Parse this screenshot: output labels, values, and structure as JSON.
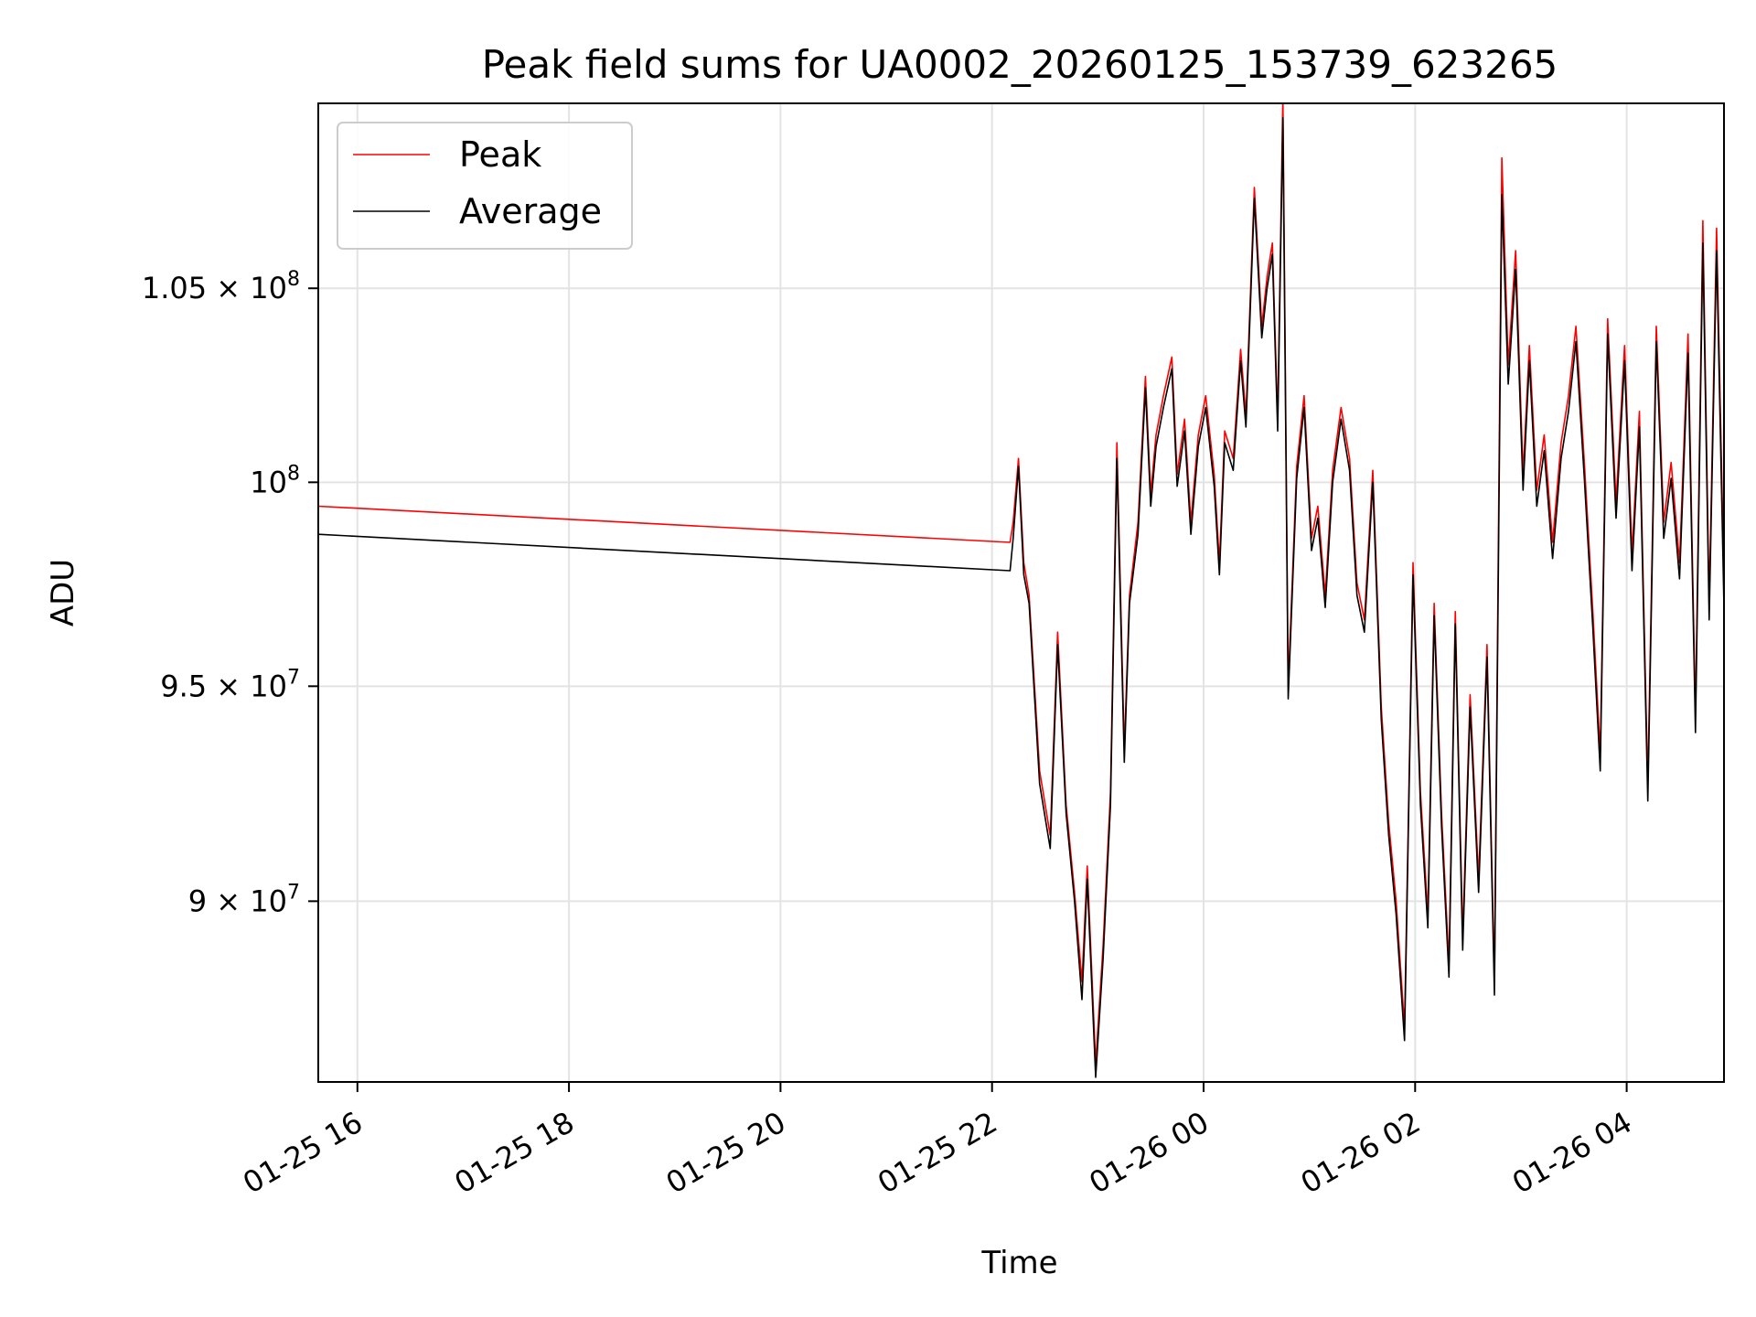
{
  "chart_data": {
    "type": "line",
    "title": "Peak field sums for UA0002_20260125_153739_623265",
    "xlabel": "Time",
    "ylabel": "ADU",
    "x_unit": "hours since 2026-01-25 00:00",
    "xlim": [
      15.63,
      28.92
    ],
    "ylim": [
      86000000,
      110000000
    ],
    "y_scale": "log",
    "grid": true,
    "legend_position": "top-left",
    "x_ticks": [
      {
        "value": 16,
        "label": "01-25 16"
      },
      {
        "value": 18,
        "label": "01-25 18"
      },
      {
        "value": 20,
        "label": "01-25 20"
      },
      {
        "value": 22,
        "label": "01-25 22"
      },
      {
        "value": 24,
        "label": "01-26 00"
      },
      {
        "value": 26,
        "label": "01-26 02"
      },
      {
        "value": 28,
        "label": "01-26 04"
      }
    ],
    "y_ticks": [
      {
        "value": 90000000,
        "mantissa": "9",
        "exponent": "7"
      },
      {
        "value": 95000000,
        "mantissa": "9.5",
        "exponent": "7"
      },
      {
        "value": 100000000,
        "mantissa": "",
        "exponent": "8"
      },
      {
        "value": 105000000,
        "mantissa": "1.05",
        "exponent": "8"
      }
    ],
    "series": [
      {
        "name": "Peak",
        "color": "#ff0000",
        "x": [
          15.63,
          22.17,
          22.2,
          22.25,
          22.3,
          22.35,
          22.45,
          22.55,
          22.62,
          22.7,
          22.78,
          22.85,
          22.9,
          22.98,
          23.05,
          23.12,
          23.18,
          23.25,
          23.3,
          23.38,
          23.45,
          23.5,
          23.55,
          23.62,
          23.7,
          23.75,
          23.82,
          23.88,
          23.95,
          24.02,
          24.1,
          24.15,
          24.2,
          24.28,
          24.35,
          24.4,
          24.48,
          24.55,
          24.6,
          24.65,
          24.7,
          24.75,
          24.8,
          24.88,
          24.95,
          25.02,
          25.08,
          25.15,
          25.22,
          25.3,
          25.38,
          25.45,
          25.52,
          25.6,
          25.68,
          25.75,
          25.82,
          25.9,
          25.98,
          26.05,
          26.12,
          26.18,
          26.25,
          26.32,
          26.38,
          26.45,
          26.52,
          26.6,
          26.68,
          26.75,
          26.82,
          26.88,
          26.95,
          27.02,
          27.08,
          27.15,
          27.22,
          27.3,
          27.38,
          27.45,
          27.52,
          27.6,
          27.68,
          27.75,
          27.82,
          27.9,
          27.98,
          28.05,
          28.12,
          28.2,
          28.28,
          28.35,
          28.42,
          28.5,
          28.58,
          28.65,
          28.72,
          28.78,
          28.85,
          28.92
        ],
        "values": [
          99400000,
          98500000,
          99000000,
          100600000,
          98000000,
          97200000,
          93000000,
          91500000,
          96300000,
          92200000,
          90200000,
          88200000,
          90800000,
          86400000,
          89000000,
          92500000,
          101000000,
          93500000,
          97200000,
          99000000,
          102700000,
          99700000,
          101200000,
          102200000,
          103200000,
          100200000,
          101600000,
          99000000,
          101200000,
          102200000,
          100200000,
          98000000,
          101300000,
          100600000,
          103400000,
          101700000,
          107700000,
          104000000,
          105300000,
          106200000,
          101600000,
          110200000,
          95000000,
          100400000,
          102200000,
          98600000,
          99400000,
          97200000,
          100300000,
          101900000,
          100600000,
          97500000,
          96600000,
          100300000,
          94500000,
          91800000,
          90000000,
          87200000,
          98000000,
          92500000,
          89700000,
          97000000,
          92000000,
          88600000,
          96800000,
          89200000,
          94800000,
          90500000,
          96000000,
          88200000,
          108500000,
          103000000,
          106000000,
          100200000,
          103500000,
          99800000,
          101200000,
          98500000,
          101000000,
          102200000,
          104000000,
          100500000,
          96800000,
          93400000,
          104200000,
          99500000,
          103500000,
          98200000,
          101800000,
          92700000,
          104000000,
          99000000,
          100500000,
          98000000,
          103800000,
          94300000,
          106800000,
          97000000,
          106600000,
          97500000
        ]
      },
      {
        "name": "Average",
        "color": "#000000",
        "x": [
          15.63,
          22.17,
          22.2,
          22.25,
          22.3,
          22.35,
          22.45,
          22.55,
          22.62,
          22.7,
          22.78,
          22.85,
          22.9,
          22.98,
          23.05,
          23.12,
          23.18,
          23.25,
          23.3,
          23.38,
          23.45,
          23.5,
          23.55,
          23.62,
          23.7,
          23.75,
          23.82,
          23.88,
          23.95,
          24.02,
          24.1,
          24.15,
          24.2,
          24.28,
          24.35,
          24.4,
          24.48,
          24.55,
          24.6,
          24.65,
          24.7,
          24.75,
          24.8,
          24.88,
          24.95,
          25.02,
          25.08,
          25.15,
          25.22,
          25.3,
          25.38,
          25.45,
          25.52,
          25.6,
          25.68,
          25.75,
          25.82,
          25.9,
          25.98,
          26.05,
          26.12,
          26.18,
          26.25,
          26.32,
          26.38,
          26.45,
          26.52,
          26.6,
          26.68,
          26.75,
          26.82,
          26.88,
          26.95,
          27.02,
          27.08,
          27.15,
          27.22,
          27.3,
          27.38,
          27.45,
          27.52,
          27.6,
          27.68,
          27.75,
          27.82,
          27.9,
          27.98,
          28.05,
          28.12,
          28.2,
          28.28,
          28.35,
          28.42,
          28.5,
          28.58,
          28.65,
          28.72,
          28.78,
          28.85,
          28.92
        ],
        "values": [
          98700000,
          97800000,
          98600000,
          100400000,
          97700000,
          97000000,
          92700000,
          91200000,
          96000000,
          92000000,
          90000000,
          87800000,
          90500000,
          86100000,
          88700000,
          92200000,
          100600000,
          93200000,
          97000000,
          98700000,
          102400000,
          99400000,
          100900000,
          101900000,
          102900000,
          99900000,
          101300000,
          98700000,
          100900000,
          101900000,
          99900000,
          97700000,
          101000000,
          100300000,
          103100000,
          101400000,
          107400000,
          103700000,
          105000000,
          105900000,
          101300000,
          109600000,
          94700000,
          100100000,
          101900000,
          98300000,
          99100000,
          96900000,
          100000000,
          101600000,
          100300000,
          97200000,
          96300000,
          100000000,
          94200000,
          91500000,
          89700000,
          86900000,
          97700000,
          92200000,
          89400000,
          96700000,
          91700000,
          88300000,
          96500000,
          88900000,
          94500000,
          90200000,
          95700000,
          87900000,
          107500000,
          102500000,
          105500000,
          99800000,
          103100000,
          99400000,
          100800000,
          98100000,
          100600000,
          101800000,
          103600000,
          100100000,
          96400000,
          93000000,
          103800000,
          99100000,
          103100000,
          97800000,
          101400000,
          92300000,
          103600000,
          98600000,
          100100000,
          97600000,
          103300000,
          93900000,
          106200000,
          96600000,
          106000000,
          96900000
        ]
      }
    ]
  }
}
